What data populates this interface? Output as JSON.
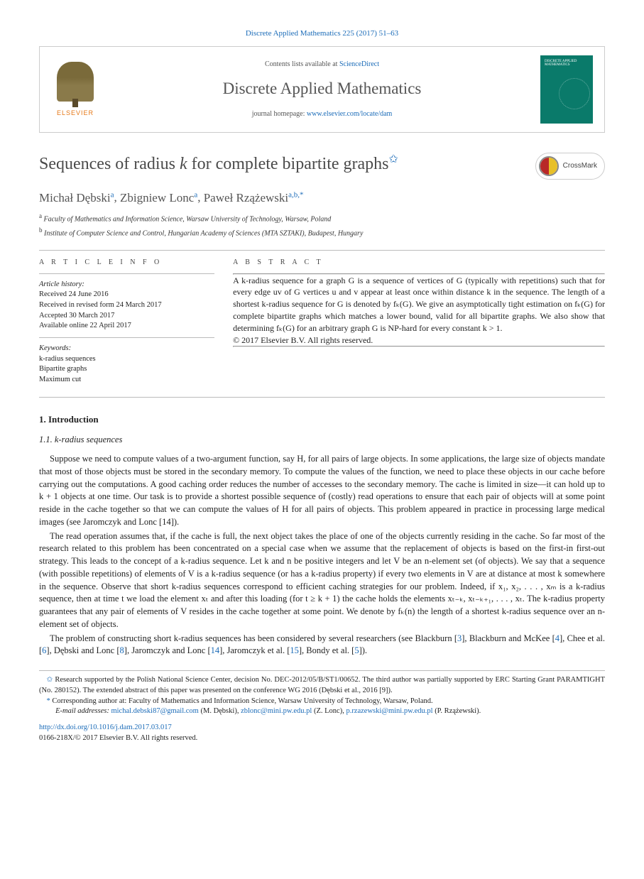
{
  "header": {
    "citation": "Discrete Applied Mathematics 225 (2017) 51–63",
    "contents_prefix": "Contents lists available at ",
    "contents_link": "ScienceDirect",
    "journal_name": "Discrete Applied Mathematics",
    "homepage_prefix": "journal homepage: ",
    "homepage_link": "www.elsevier.com/locate/dam",
    "publisher": "ELSEVIER",
    "cover_text": "DISCRETE APPLIED MATHEMATICS"
  },
  "crossmark_label": "CrossMark",
  "title": {
    "pre": "Sequences of radius ",
    "k": "k",
    "post": " for complete bipartite graphs",
    "star": "✩"
  },
  "authors": [
    {
      "name": "Michał Dębski",
      "sup": "a"
    },
    {
      "name": "Zbigniew Lonc",
      "sup": "a"
    },
    {
      "name": "Paweł Rzążewski",
      "sup": "a,b,",
      "star": "*"
    }
  ],
  "affiliations": [
    {
      "mark": "a",
      "text": "Faculty of Mathematics and Information Science, Warsaw University of Technology, Warsaw, Poland"
    },
    {
      "mark": "b",
      "text": "Institute of Computer Science and Control, Hungarian Academy of Sciences (MTA SZTAKI), Budapest, Hungary"
    }
  ],
  "info": {
    "head": "A R T I C L E   I N F O",
    "history_label": "Article history:",
    "history": [
      "Received 24 June 2016",
      "Received in revised form 24 March 2017",
      "Accepted 30 March 2017",
      "Available online 22 April 2017"
    ],
    "keywords_label": "Keywords:",
    "keywords": [
      "k-radius sequences",
      "Bipartite graphs",
      "Maximum cut"
    ]
  },
  "abstract": {
    "head": "A B S T R A C T",
    "body": "A k-radius sequence for a graph G is a sequence of vertices of G (typically with repetitions) such that for every edge uv of G vertices u and v appear at least once within distance k in the sequence. The length of a shortest k-radius sequence for G is denoted by fₖ(G). We give an asymptotically tight estimation on fₖ(G) for complete bipartite graphs which matches a lower bound, valid for all bipartite graphs. We also show that determining fₖ(G) for an arbitrary graph G is NP-hard for every constant k > 1.",
    "copyright": "© 2017 Elsevier B.V. All rights reserved."
  },
  "sections": {
    "s1": "1. Introduction",
    "s11": "1.1. k-radius sequences"
  },
  "paragraphs": {
    "p1": "Suppose we need to compute values of a two-argument function, say H, for all pairs of large objects. In some applications, the large size of objects mandate that most of those objects must be stored in the secondary memory. To compute the values of the function, we need to place these objects in our cache before carrying out the computations. A good caching order reduces the number of accesses to the secondary memory. The cache is limited in size—it can hold up to k + 1 objects at one time. Our task is to provide a shortest possible sequence of (costly) read operations to ensure that each pair of objects will at some point reside in the cache together so that we can compute the values of H for all pairs of objects. This problem appeared in practice in processing large medical images (see Jaromczyk and Lonc [14]).",
    "p2": "The read operation assumes that, if the cache is full, the next object takes the place of one of the objects currently residing in the cache. So far most of the research related to this problem has been concentrated on a special case when we assume that the replacement of objects is based on the first-in first-out strategy. This leads to the concept of a k-radius sequence. Let k and n be positive integers and let V be an n-element set (of objects). We say that a sequence (with possible repetitions) of elements of V is a k-radius sequence (or has a k-radius property) if every two elements in V are at distance at most k somewhere in the sequence. Observe that short k-radius sequences correspond to efficient caching strategies for our problem. Indeed, if x₁, x₂, . . . , xₘ is a k-radius sequence, then at time t we load the element xₜ and after this loading (for t ≥ k + 1) the cache holds the elements xₜ₋ₖ, xₜ₋ₖ₊₁, . . . , xₜ. The k-radius property guarantees that any pair of elements of V resides in the cache together at some point. We denote by fₖ(n) the length of a shortest k-radius sequence over an n-element set of objects.",
    "p3_pre": "The problem of constructing short k-radius sequences has been considered by several researchers (see Blackburn [",
    "p3_r1": "3",
    "p3_m1": "], Blackburn and McKee [",
    "p3_r2": "4",
    "p3_m2": "], Chee et al. [",
    "p3_r3": "6",
    "p3_m3": "], Dębski and Lonc [",
    "p3_r4": "8",
    "p3_m4": "], Jaromczyk and Lonc [",
    "p3_r5": "14",
    "p3_m5": "], Jaromczyk et al. [",
    "p3_r6": "15",
    "p3_m6": "], Bondy et al. [",
    "p3_r7": "5",
    "p3_m7": "])."
  },
  "footnotes": {
    "funding_mark": "✩",
    "funding": "Research supported by the Polish National Science Center, decision No. DEC-2012/05/B/ST1/00652. The third author was partially supported by ERC Starting Grant PARAMTIGHT (No. 280152). The extended abstract of this paper was presented on the conference WG 2016 (Dębski et al., 2016 [9]).",
    "corr_mark": "*",
    "corr_text": "Corresponding author at: Faculty of Mathematics and Information Science, Warsaw University of Technology, Warsaw, Poland.",
    "email_label": "E-mail addresses:",
    "emails": [
      {
        "addr": "michal.debski87@gmail.com",
        "who": "(M. Dębski)"
      },
      {
        "addr": "zblonc@mini.pw.edu.pl",
        "who": "(Z. Lonc)"
      },
      {
        "addr": "p.rzazewski@mini.pw.edu.pl",
        "who": "(P. Rzążewski)"
      }
    ]
  },
  "bottom": {
    "doi": "http://dx.doi.org/10.1016/j.dam.2017.03.017",
    "issn": "0166-218X/© 2017 Elsevier B.V. All rights reserved."
  },
  "colors": {
    "link": "#1a6bb8",
    "elsevier_orange": "#e67817",
    "cover_bg": "#0a7a6a",
    "rule": "#bbbbbb",
    "text": "#222222",
    "muted": "#555555"
  },
  "typography": {
    "body_pt": 12.5,
    "title_pt": 24,
    "authors_pt": 17,
    "journal_pt": 23,
    "small_pt": 10.5,
    "family": "Georgia / Times"
  }
}
